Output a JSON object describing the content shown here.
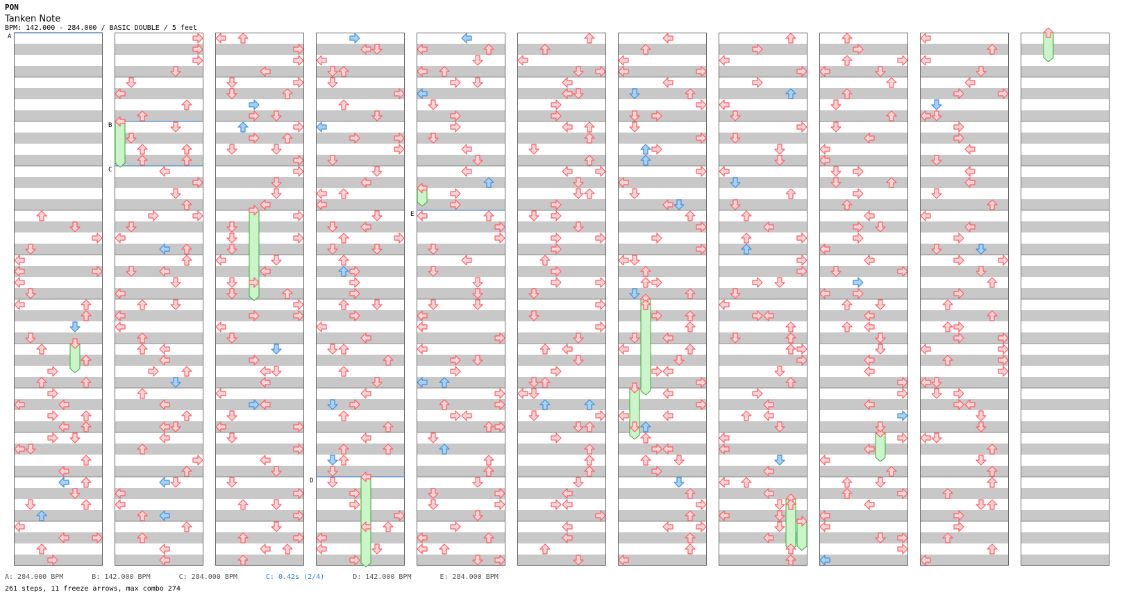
{
  "header": {
    "artist": "PON",
    "title": "Tanken Note",
    "info": "BPM: 142.000 - 284.000 / BASIC DOUBLE / 5 feet"
  },
  "colors": {
    "step": "#ff5a5f",
    "step_fill": "#ffd6d8",
    "shock": "#3a8fe0",
    "shock_fill": "#a9d1f7",
    "freeze": "#3aa63a",
    "freeze_fill": "#c9f5c9",
    "band": "#c8c8c8",
    "bpm_line": "#2b7fd6"
  },
  "chart": {
    "columns": 11,
    "measures_per_column": 12,
    "lanes": 8,
    "lane_order": [
      "left",
      "down",
      "up",
      "right",
      "left",
      "down",
      "up",
      "right"
    ]
  },
  "markers": [
    {
      "label": "A",
      "column": 0,
      "measure_pos": 0
    },
    {
      "label": "B",
      "column": 1,
      "measure_pos": 2
    },
    {
      "label": "C",
      "column": 1,
      "measure_pos": 3
    },
    {
      "label": "D",
      "column": 3,
      "measure_pos": 10
    },
    {
      "label": "E",
      "column": 4,
      "measure_pos": 4
    }
  ],
  "freezes": [
    {
      "column": 1,
      "lane": 0,
      "start": 2.0,
      "end": 3.0
    },
    {
      "column": 0,
      "lane": 5,
      "start": 7.0,
      "end": 7.625
    },
    {
      "column": 2,
      "lane": 3,
      "start": 4.0,
      "end": 6.0
    },
    {
      "column": 3,
      "lane": 4,
      "start": 10.0,
      "end": 12.0
    },
    {
      "column": 4,
      "lane": 0,
      "start": 3.5,
      "end": 3.875
    },
    {
      "column": 6,
      "lane": 2,
      "start": 6.0,
      "end": 8.125
    },
    {
      "column": 6,
      "lane": 1,
      "start": 8.0,
      "end": 9.125
    },
    {
      "column": 7,
      "lane": 6,
      "start": 10.5,
      "end": 11.625
    },
    {
      "column": 7,
      "lane": 7,
      "start": 11.0,
      "end": 11.625
    },
    {
      "column": 8,
      "lane": 5,
      "start": 9.0,
      "end": 9.625
    },
    {
      "column": 10,
      "lane": 2,
      "start": 0.0,
      "end": 0.625
    }
  ],
  "footer": {
    "legend": [
      {
        "text": "A: 284.000 BPM",
        "kind": "bpm"
      },
      {
        "text": "B: 142.000 BPM",
        "kind": "bpm"
      },
      {
        "text": "C: 284.000 BPM",
        "kind": "bpm"
      },
      {
        "text": "C: 0.42s (2/4)",
        "kind": "stop"
      },
      {
        "text": "D: 142.000 BPM",
        "kind": "bpm"
      },
      {
        "text": "E: 284.000 BPM",
        "kind": "bpm"
      }
    ],
    "stats": "261 steps, 11 freeze arrows, max combo 274"
  }
}
